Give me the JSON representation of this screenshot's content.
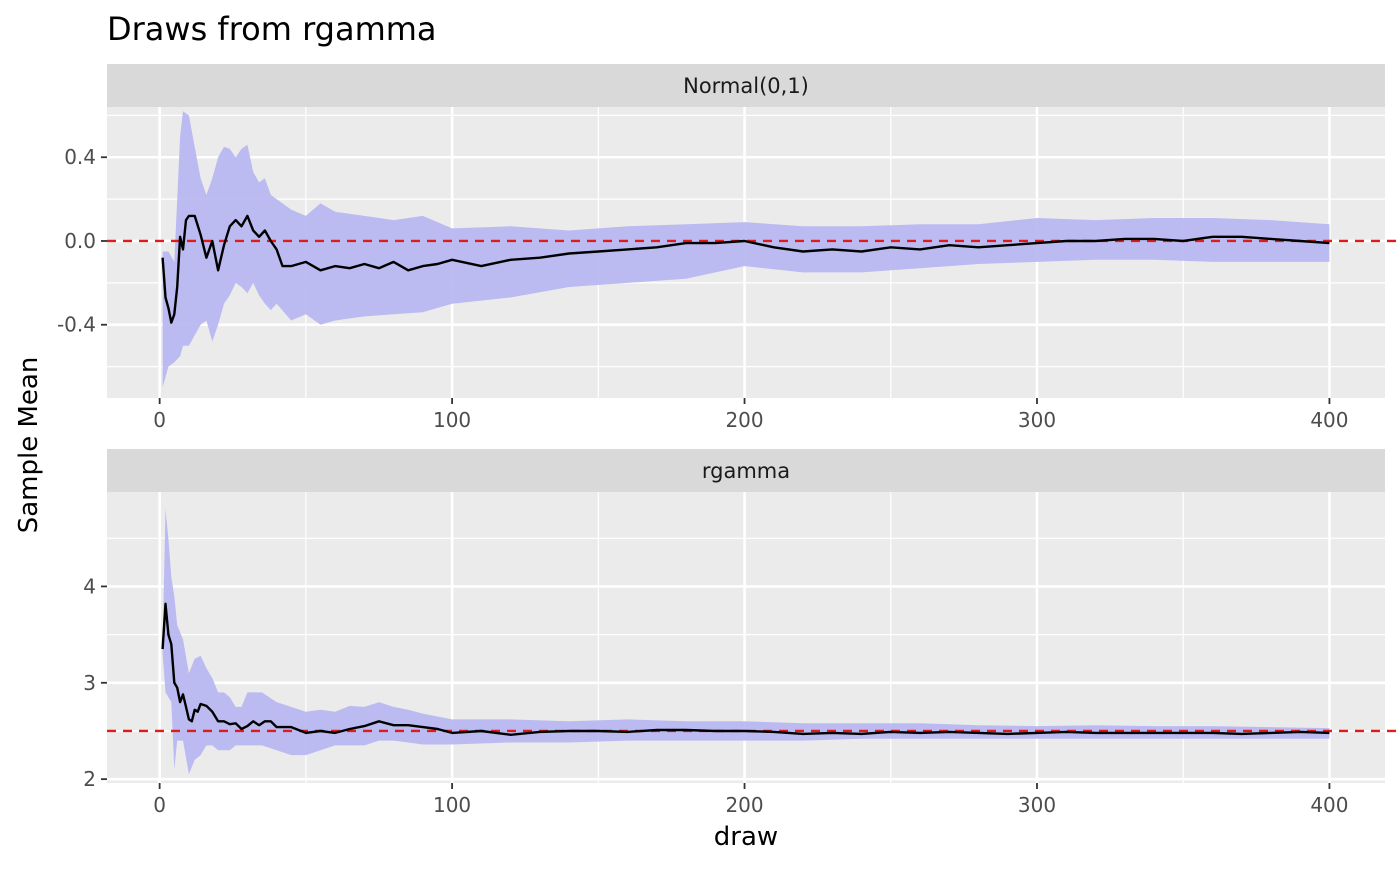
{
  "chart_data": {
    "type": "line",
    "title": "Draws from rgamma",
    "xlabel": "draw",
    "ylabel": "Sample Mean",
    "grid": true,
    "colors": {
      "line": "#000000",
      "ribbon": "#b8b8f2",
      "reference": "#e31a1c",
      "panel_bg": "#ebebeb",
      "strip_bg": "#d9d9d9"
    },
    "panels": [
      {
        "strip": "Normal(0,1)",
        "reference_value": 0.0,
        "xlim": [
          -18,
          419
        ],
        "ylim": [
          -0.75,
          0.64
        ],
        "x_ticks": [
          0,
          100,
          200,
          300,
          400
        ],
        "y_ticks": [
          -0.4,
          0.0,
          0.4
        ],
        "y_tick_labels": [
          "-0.4",
          "0.0",
          "0.4"
        ],
        "series": [
          {
            "role": "mean",
            "x": [
              1,
              2,
              3,
              4,
              5,
              6,
              7,
              8,
              9,
              10,
              12,
              14,
              16,
              18,
              20,
              22,
              24,
              26,
              28,
              30,
              32,
              34,
              36,
              38,
              40,
              42,
              45,
              50,
              55,
              60,
              65,
              70,
              75,
              80,
              85,
              90,
              95,
              100,
              110,
              120,
              130,
              140,
              150,
              160,
              170,
              180,
              190,
              200,
              210,
              220,
              230,
              240,
              250,
              260,
              270,
              280,
              290,
              300,
              310,
              320,
              330,
              340,
              350,
              360,
              370,
              380,
              390,
              400
            ],
            "y": [
              -0.08,
              -0.27,
              -0.32,
              -0.39,
              -0.35,
              -0.22,
              0.02,
              -0.04,
              0.1,
              0.12,
              0.12,
              0.03,
              -0.08,
              0.0,
              -0.14,
              -0.02,
              0.07,
              0.1,
              0.07,
              0.12,
              0.05,
              0.02,
              0.05,
              0.0,
              -0.04,
              -0.12,
              -0.12,
              -0.1,
              -0.14,
              -0.12,
              -0.13,
              -0.11,
              -0.13,
              -0.1,
              -0.14,
              -0.12,
              -0.11,
              -0.09,
              -0.12,
              -0.09,
              -0.08,
              -0.06,
              -0.05,
              -0.04,
              -0.03,
              -0.01,
              -0.01,
              0.0,
              -0.03,
              -0.05,
              -0.04,
              -0.05,
              -0.03,
              -0.04,
              -0.02,
              -0.03,
              -0.02,
              -0.01,
              0.0,
              0.0,
              0.01,
              0.01,
              0.0,
              0.02,
              0.02,
              0.01,
              0.0,
              -0.01
            ]
          },
          {
            "role": "band_upper",
            "x": [
              1,
              3,
              5,
              7,
              8,
              10,
              12,
              14,
              16,
              18,
              20,
              22,
              24,
              26,
              28,
              30,
              32,
              34,
              36,
              38,
              40,
              45,
              50,
              55,
              60,
              70,
              80,
              90,
              100,
              120,
              140,
              160,
              180,
              200,
              220,
              240,
              260,
              280,
              300,
              320,
              340,
              360,
              380,
              400
            ],
            "y": [
              -0.05,
              -0.05,
              -0.1,
              0.5,
              0.62,
              0.6,
              0.45,
              0.3,
              0.22,
              0.3,
              0.4,
              0.45,
              0.44,
              0.4,
              0.44,
              0.46,
              0.33,
              0.28,
              0.3,
              0.22,
              0.2,
              0.15,
              0.12,
              0.18,
              0.14,
              0.12,
              0.1,
              0.12,
              0.06,
              0.07,
              0.05,
              0.07,
              0.08,
              0.09,
              0.07,
              0.07,
              0.08,
              0.08,
              0.11,
              0.1,
              0.11,
              0.11,
              0.1,
              0.08
            ]
          },
          {
            "role": "band_lower",
            "x": [
              1,
              3,
              5,
              7,
              8,
              10,
              12,
              14,
              16,
              18,
              20,
              22,
              24,
              26,
              28,
              30,
              32,
              34,
              36,
              38,
              40,
              45,
              50,
              55,
              60,
              70,
              80,
              90,
              100,
              120,
              140,
              160,
              180,
              200,
              220,
              240,
              260,
              280,
              300,
              320,
              340,
              360,
              380,
              400
            ],
            "y": [
              -0.7,
              -0.6,
              -0.58,
              -0.55,
              -0.5,
              -0.5,
              -0.45,
              -0.4,
              -0.38,
              -0.48,
              -0.4,
              -0.3,
              -0.26,
              -0.2,
              -0.22,
              -0.25,
              -0.2,
              -0.26,
              -0.3,
              -0.33,
              -0.3,
              -0.38,
              -0.35,
              -0.4,
              -0.38,
              -0.36,
              -0.35,
              -0.34,
              -0.3,
              -0.27,
              -0.22,
              -0.2,
              -0.18,
              -0.12,
              -0.15,
              -0.15,
              -0.13,
              -0.11,
              -0.1,
              -0.09,
              -0.09,
              -0.1,
              -0.1,
              -0.1
            ]
          }
        ]
      },
      {
        "strip": "rgamma",
        "reference_value": 2.5,
        "xlim": [
          -18,
          419
        ],
        "ylim": [
          1.96,
          4.98
        ],
        "x_ticks": [
          0,
          100,
          200,
          300,
          400
        ],
        "y_ticks": [
          2,
          3,
          4
        ],
        "y_tick_labels": [
          "2",
          "3",
          "4"
        ],
        "series": [
          {
            "role": "mean",
            "x": [
              1,
              2,
              3,
              4,
              5,
              6,
              7,
              8,
              9,
              10,
              11,
              12,
              13,
              14,
              16,
              18,
              20,
              22,
              24,
              26,
              28,
              30,
              32,
              34,
              36,
              38,
              40,
              45,
              50,
              55,
              60,
              65,
              70,
              75,
              80,
              85,
              90,
              95,
              100,
              110,
              120,
              130,
              140,
              150,
              160,
              170,
              180,
              190,
              200,
              210,
              220,
              230,
              240,
              250,
              260,
              270,
              280,
              290,
              300,
              310,
              320,
              330,
              340,
              350,
              360,
              370,
              380,
              390,
              400
            ],
            "y": [
              3.35,
              3.82,
              3.5,
              3.4,
              3.0,
              2.95,
              2.8,
              2.88,
              2.75,
              2.62,
              2.6,
              2.72,
              2.7,
              2.78,
              2.76,
              2.7,
              2.6,
              2.6,
              2.57,
              2.58,
              2.52,
              2.55,
              2.6,
              2.56,
              2.6,
              2.6,
              2.54,
              2.54,
              2.48,
              2.5,
              2.48,
              2.52,
              2.55,
              2.6,
              2.56,
              2.56,
              2.54,
              2.52,
              2.48,
              2.5,
              2.46,
              2.49,
              2.5,
              2.5,
              2.49,
              2.51,
              2.51,
              2.5,
              2.5,
              2.49,
              2.47,
              2.48,
              2.47,
              2.49,
              2.48,
              2.49,
              2.48,
              2.47,
              2.48,
              2.49,
              2.48,
              2.48,
              2.48,
              2.48,
              2.48,
              2.47,
              2.48,
              2.49,
              2.48
            ]
          },
          {
            "role": "band_upper",
            "x": [
              1,
              2,
              3,
              4,
              5,
              6,
              8,
              10,
              12,
              14,
              16,
              18,
              20,
              22,
              24,
              26,
              28,
              30,
              35,
              40,
              45,
              50,
              55,
              60,
              65,
              70,
              75,
              80,
              85,
              90,
              100,
              120,
              140,
              160,
              180,
              200,
              220,
              240,
              260,
              280,
              300,
              320,
              340,
              360,
              380,
              400
            ],
            "y": [
              3.4,
              4.8,
              4.5,
              4.1,
              3.9,
              3.6,
              3.45,
              3.1,
              3.25,
              3.28,
              3.15,
              3.05,
              2.9,
              2.9,
              2.85,
              2.75,
              2.75,
              2.9,
              2.9,
              2.8,
              2.75,
              2.7,
              2.72,
              2.7,
              2.76,
              2.75,
              2.8,
              2.75,
              2.72,
              2.68,
              2.62,
              2.62,
              2.6,
              2.62,
              2.6,
              2.6,
              2.58,
              2.58,
              2.58,
              2.56,
              2.55,
              2.56,
              2.55,
              2.55,
              2.54,
              2.53
            ]
          },
          {
            "role": "band_lower",
            "x": [
              1,
              2,
              3,
              4,
              5,
              6,
              8,
              10,
              12,
              14,
              16,
              18,
              20,
              22,
              24,
              26,
              28,
              30,
              35,
              40,
              45,
              50,
              55,
              60,
              65,
              70,
              75,
              80,
              85,
              90,
              100,
              120,
              140,
              160,
              180,
              200,
              220,
              240,
              260,
              280,
              300,
              320,
              340,
              360,
              380,
              400
            ],
            "y": [
              3.3,
              2.9,
              2.85,
              2.8,
              2.1,
              2.4,
              2.4,
              2.05,
              2.2,
              2.25,
              2.35,
              2.35,
              2.3,
              2.3,
              2.3,
              2.35,
              2.35,
              2.35,
              2.35,
              2.3,
              2.25,
              2.25,
              2.3,
              2.35,
              2.35,
              2.35,
              2.4,
              2.4,
              2.38,
              2.36,
              2.36,
              2.38,
              2.38,
              2.4,
              2.4,
              2.4,
              2.4,
              2.42,
              2.42,
              2.42,
              2.42,
              2.42,
              2.42,
              2.42,
              2.42,
              2.42
            ]
          }
        ]
      }
    ]
  }
}
